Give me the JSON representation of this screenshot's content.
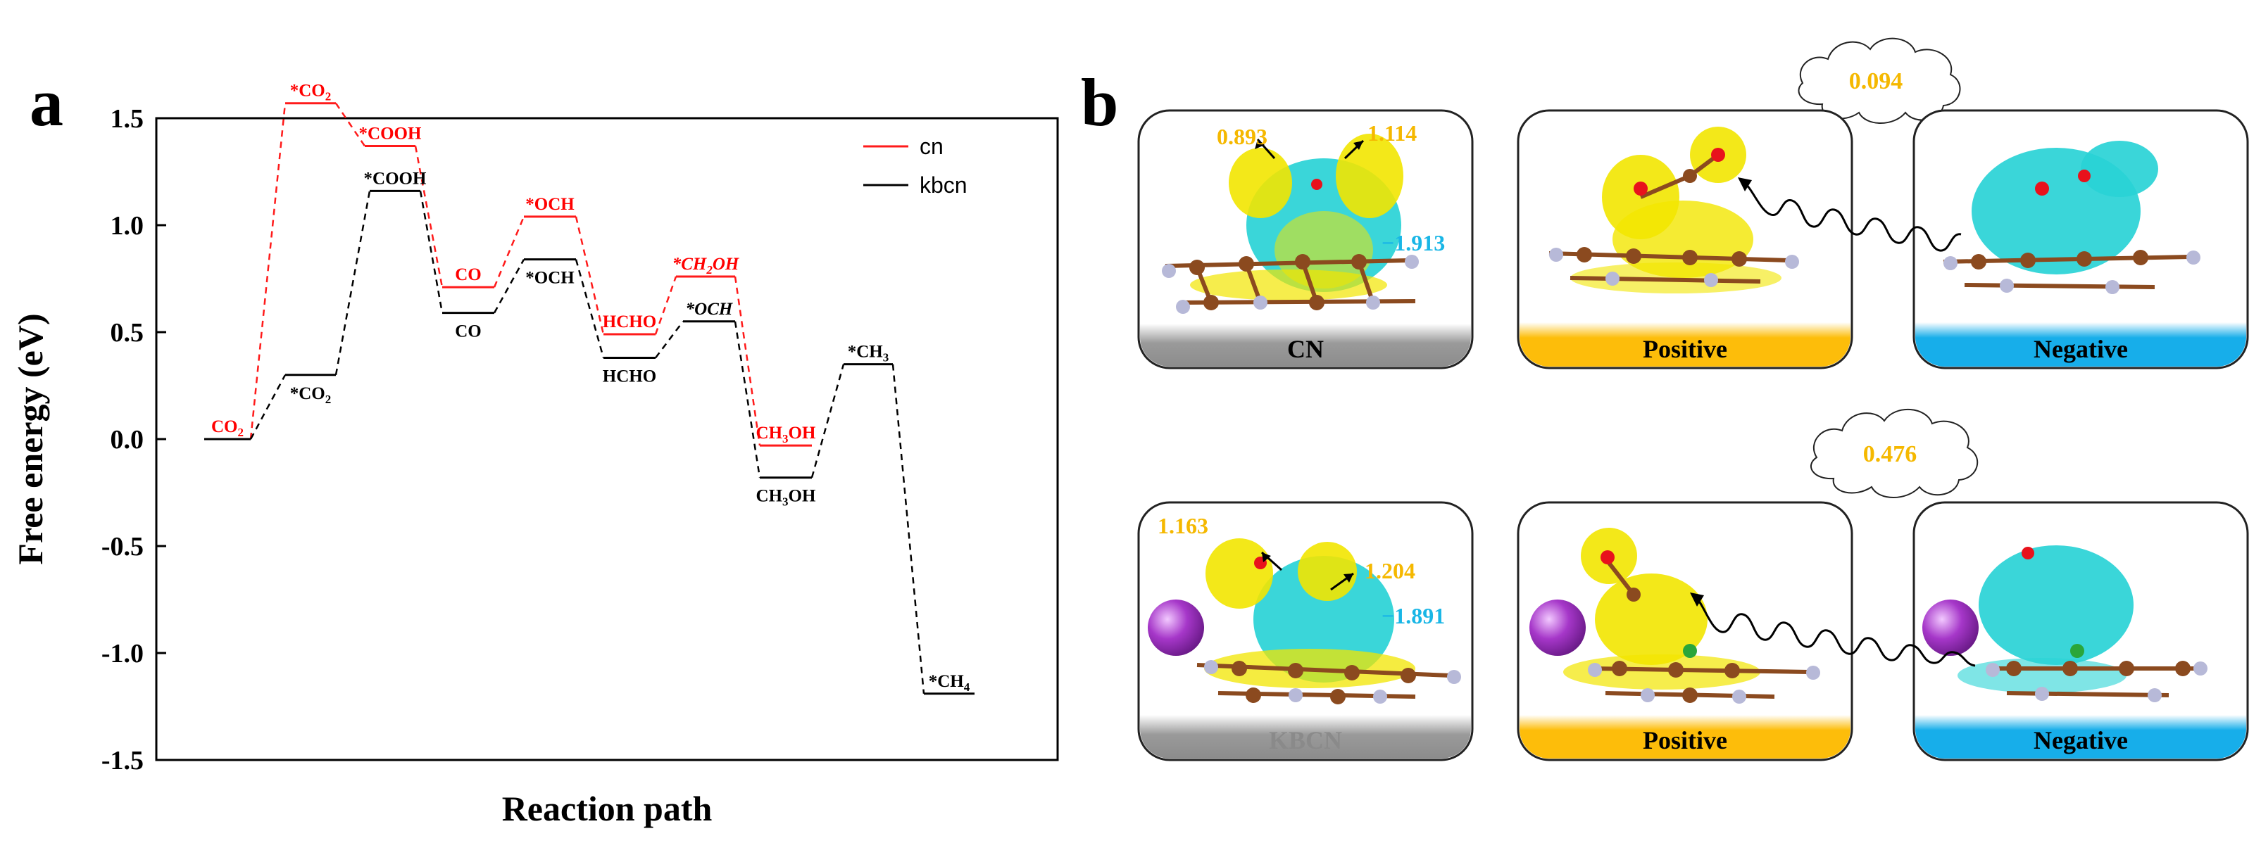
{
  "panels": {
    "a": "a",
    "b": "b"
  },
  "chart_data": {
    "type": "line",
    "xlabel": "Reaction path",
    "ylabel": "Free energy (eV)",
    "ylim": [
      -1.5,
      1.5
    ],
    "yticks": [
      -1.5,
      -1.0,
      -0.5,
      0.0,
      0.5,
      1.0,
      1.5
    ],
    "yticklabels": [
      "-1.5",
      "-1.0",
      "-0.5",
      "0.0",
      "0.5",
      "1.0",
      "1.5"
    ],
    "legend_position": "top-right",
    "series": [
      {
        "name": "cn",
        "color": "#ff1a1a",
        "label_color": "#ff0000",
        "steps": [
          {
            "label": "CO2",
            "label_html": "CO<tspan font-size='17' dy='6'>2</tspan>",
            "y": 0.0,
            "label_pos": "above",
            "shared": true
          },
          {
            "label": "*CO2",
            "label_html": "*CO<tspan font-size='17' dy='6'>2</tspan>",
            "y": 1.57,
            "label_pos": "above"
          },
          {
            "label": "*COOH",
            "label_html": "*COOH",
            "y": 1.37,
            "label_pos": "above"
          },
          {
            "label": "CO",
            "label_html": "CO",
            "y": 0.71,
            "label_pos": "above"
          },
          {
            "label": "*OCH",
            "label_html": "*OCH",
            "y": 1.04,
            "label_pos": "above"
          },
          {
            "label": "HCHO",
            "label_html": "HCHO",
            "y": 0.49,
            "label_pos": "above"
          },
          {
            "label": "*CH2OH",
            "label_html": "<tspan font-style='italic'>*CH<tspan font-size='17' dy='6'>2</tspan><tspan dy='-6'>OH</tspan></tspan>",
            "y": 0.76,
            "label_pos": "above"
          },
          {
            "label": "CH3OH",
            "label_html": "CH<tspan font-size='17' dy='6'>3</tspan><tspan dy='-6'>OH</tspan>",
            "y": -0.03,
            "label_pos": "above"
          }
        ]
      },
      {
        "name": "kbcn",
        "color": "#000000",
        "label_color": "#000000",
        "steps": [
          {
            "label": "CO2",
            "label_html": "",
            "y": 0.0,
            "label_pos": "none"
          },
          {
            "label": "*CO2",
            "label_html": "*CO<tspan font-size='17' dy='6'>2</tspan>",
            "y": 0.3,
            "label_pos": "below"
          },
          {
            "label": "*COOH",
            "label_html": "*COOH",
            "y": 1.16,
            "label_pos": "above"
          },
          {
            "label": "CO",
            "label_html": "CO",
            "y": 0.59,
            "label_pos": "below"
          },
          {
            "label": "*OCH",
            "label_html": "*OCH",
            "y": 0.84,
            "label_pos": "below"
          },
          {
            "label": "HCHO",
            "label_html": "HCHO",
            "y": 0.38,
            "label_pos": "below"
          },
          {
            "label": "*OCH",
            "label_html": "<tspan font-style='italic'>*OCH</tspan>",
            "y": 0.55,
            "label_pos": "above"
          },
          {
            "label": "CH3OH",
            "label_html": "CH<tspan font-size='17' dy='6'>3</tspan><tspan dy='-6'>OH</tspan>",
            "y": -0.18,
            "label_pos": "below"
          },
          {
            "label": "*CH3",
            "label_html": "*CH<tspan font-size='17' dy='6'>3</tspan>",
            "y": 0.35,
            "label_pos": "above"
          },
          {
            "label": "*CH4",
            "label_html": "*CH<tspan font-size='17' dy='6'>4</tspan>",
            "y": -1.19,
            "label_pos": "above"
          }
        ]
      }
    ]
  },
  "panel_b": {
    "clouds": [
      {
        "value": "0.094"
      },
      {
        "value": "0.476"
      }
    ],
    "rows": [
      {
        "boxes": [
          {
            "label": "CN",
            "label_color": "#000000",
            "band": "gray"
          },
          {
            "label": "Positive",
            "label_color": "#000000",
            "band": "yellow"
          },
          {
            "label": "Negative",
            "label_color": "#000000",
            "band": "blue"
          }
        ],
        "charges": [
          {
            "value": "0.893",
            "color": "#f5b800"
          },
          {
            "value": "1.114",
            "color": "#f5b800"
          },
          {
            "value": "−1.913",
            "color": "#19b6e6"
          }
        ]
      },
      {
        "boxes": [
          {
            "label": "KBCN",
            "label_color": "#8a8a8a",
            "band": "gray"
          },
          {
            "label": "Positive",
            "label_color": "#000000",
            "band": "yellow"
          },
          {
            "label": "Negative",
            "label_color": "#000000",
            "band": "blue"
          }
        ],
        "charges": [
          {
            "value": "1.163",
            "color": "#f5b800"
          },
          {
            "value": "1.204",
            "color": "#f5b800"
          },
          {
            "value": "−1.891",
            "color": "#19b6e6"
          }
        ]
      }
    ],
    "colors": {
      "positive": "#f2e600",
      "negative": "#29d3d6",
      "carbon": "#8b4a1f",
      "nitrogen": "#b7b9d8",
      "oxygen": "#e8121c",
      "potassium": "#a637c9",
      "band_gray": "#9a9a9a",
      "band_yellow": "#fdbd0a",
      "band_blue": "#17aeea"
    }
  }
}
